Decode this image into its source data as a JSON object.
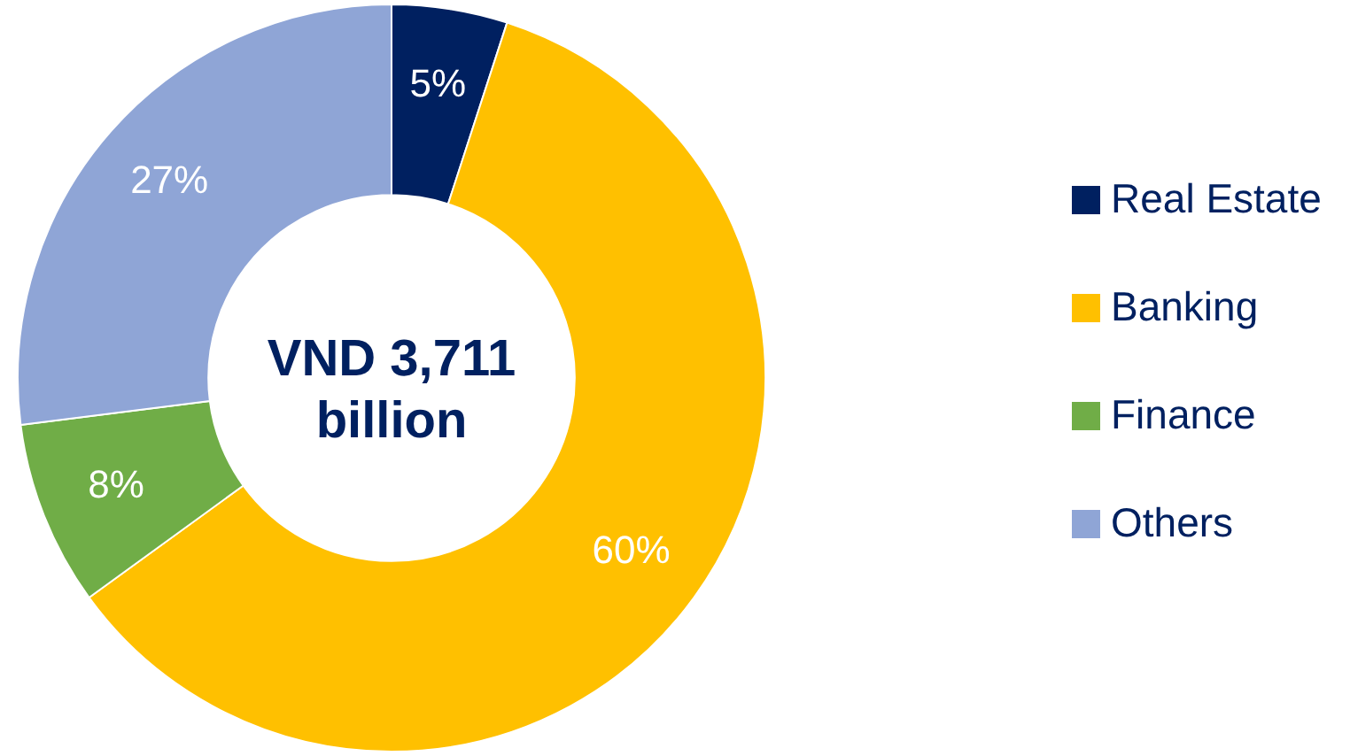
{
  "chart_data": {
    "type": "donut",
    "categories": [
      "Real Estate",
      "Banking",
      "Finance",
      "Others"
    ],
    "values": [
      5,
      60,
      8,
      27
    ],
    "colors": [
      "#002060",
      "#ffc000",
      "#70ad47",
      "#8fa5d6"
    ],
    "value_labels": [
      "5%",
      "60%",
      "8%",
      "27%"
    ],
    "annotations": [
      "VND 3,711 billion"
    ],
    "legend": "right"
  }
}
